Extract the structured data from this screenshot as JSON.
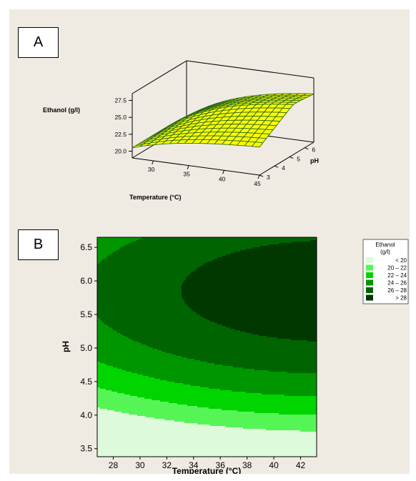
{
  "panels": {
    "a_label": "A",
    "b_label": "B"
  },
  "chart_data": [
    {
      "type": "surface",
      "zlabel": "Ethanol (g/l)",
      "xlabel": "Temperature (°C)",
      "ylabel": "pH",
      "x_ticks": [
        "30",
        "35",
        "40",
        "45"
      ],
      "y_ticks": [
        "3",
        "4",
        "5",
        "6"
      ],
      "z_ticks": [
        "20.0",
        "22.5",
        "25.0",
        "27.5"
      ],
      "xlim": [
        27,
        45
      ],
      "ylim": [
        3,
        6.6
      ],
      "zlim": [
        19,
        28.5
      ],
      "surface_color": "#ffff00",
      "mesh_color": "#2d6a1a"
    },
    {
      "type": "contour",
      "xlabel": "Temperature (°C)",
      "ylabel": "pH",
      "x_ticks": [
        "28",
        "30",
        "32",
        "34",
        "36",
        "38",
        "40",
        "42"
      ],
      "y_ticks": [
        "3.5",
        "4.0",
        "4.5",
        "5.0",
        "5.5",
        "6.0",
        "6.5"
      ],
      "xlim": [
        26.8,
        43.2
      ],
      "ylim": [
        3.38,
        6.65
      ],
      "legend": {
        "title": "Ethanol (g/l)",
        "position": "right",
        "items": [
          {
            "label": "< 20",
            "color": "#ddfada"
          },
          {
            "label": "20 – 22",
            "color": "#55f555"
          },
          {
            "label": "22 – 24",
            "color": "#00d500"
          },
          {
            "label": "24 – 26",
            "color": "#009600"
          },
          {
            "label": "26 – 28",
            "color": "#006400"
          },
          {
            "label": "> 28",
            "color": "#003800"
          }
        ]
      }
    }
  ]
}
